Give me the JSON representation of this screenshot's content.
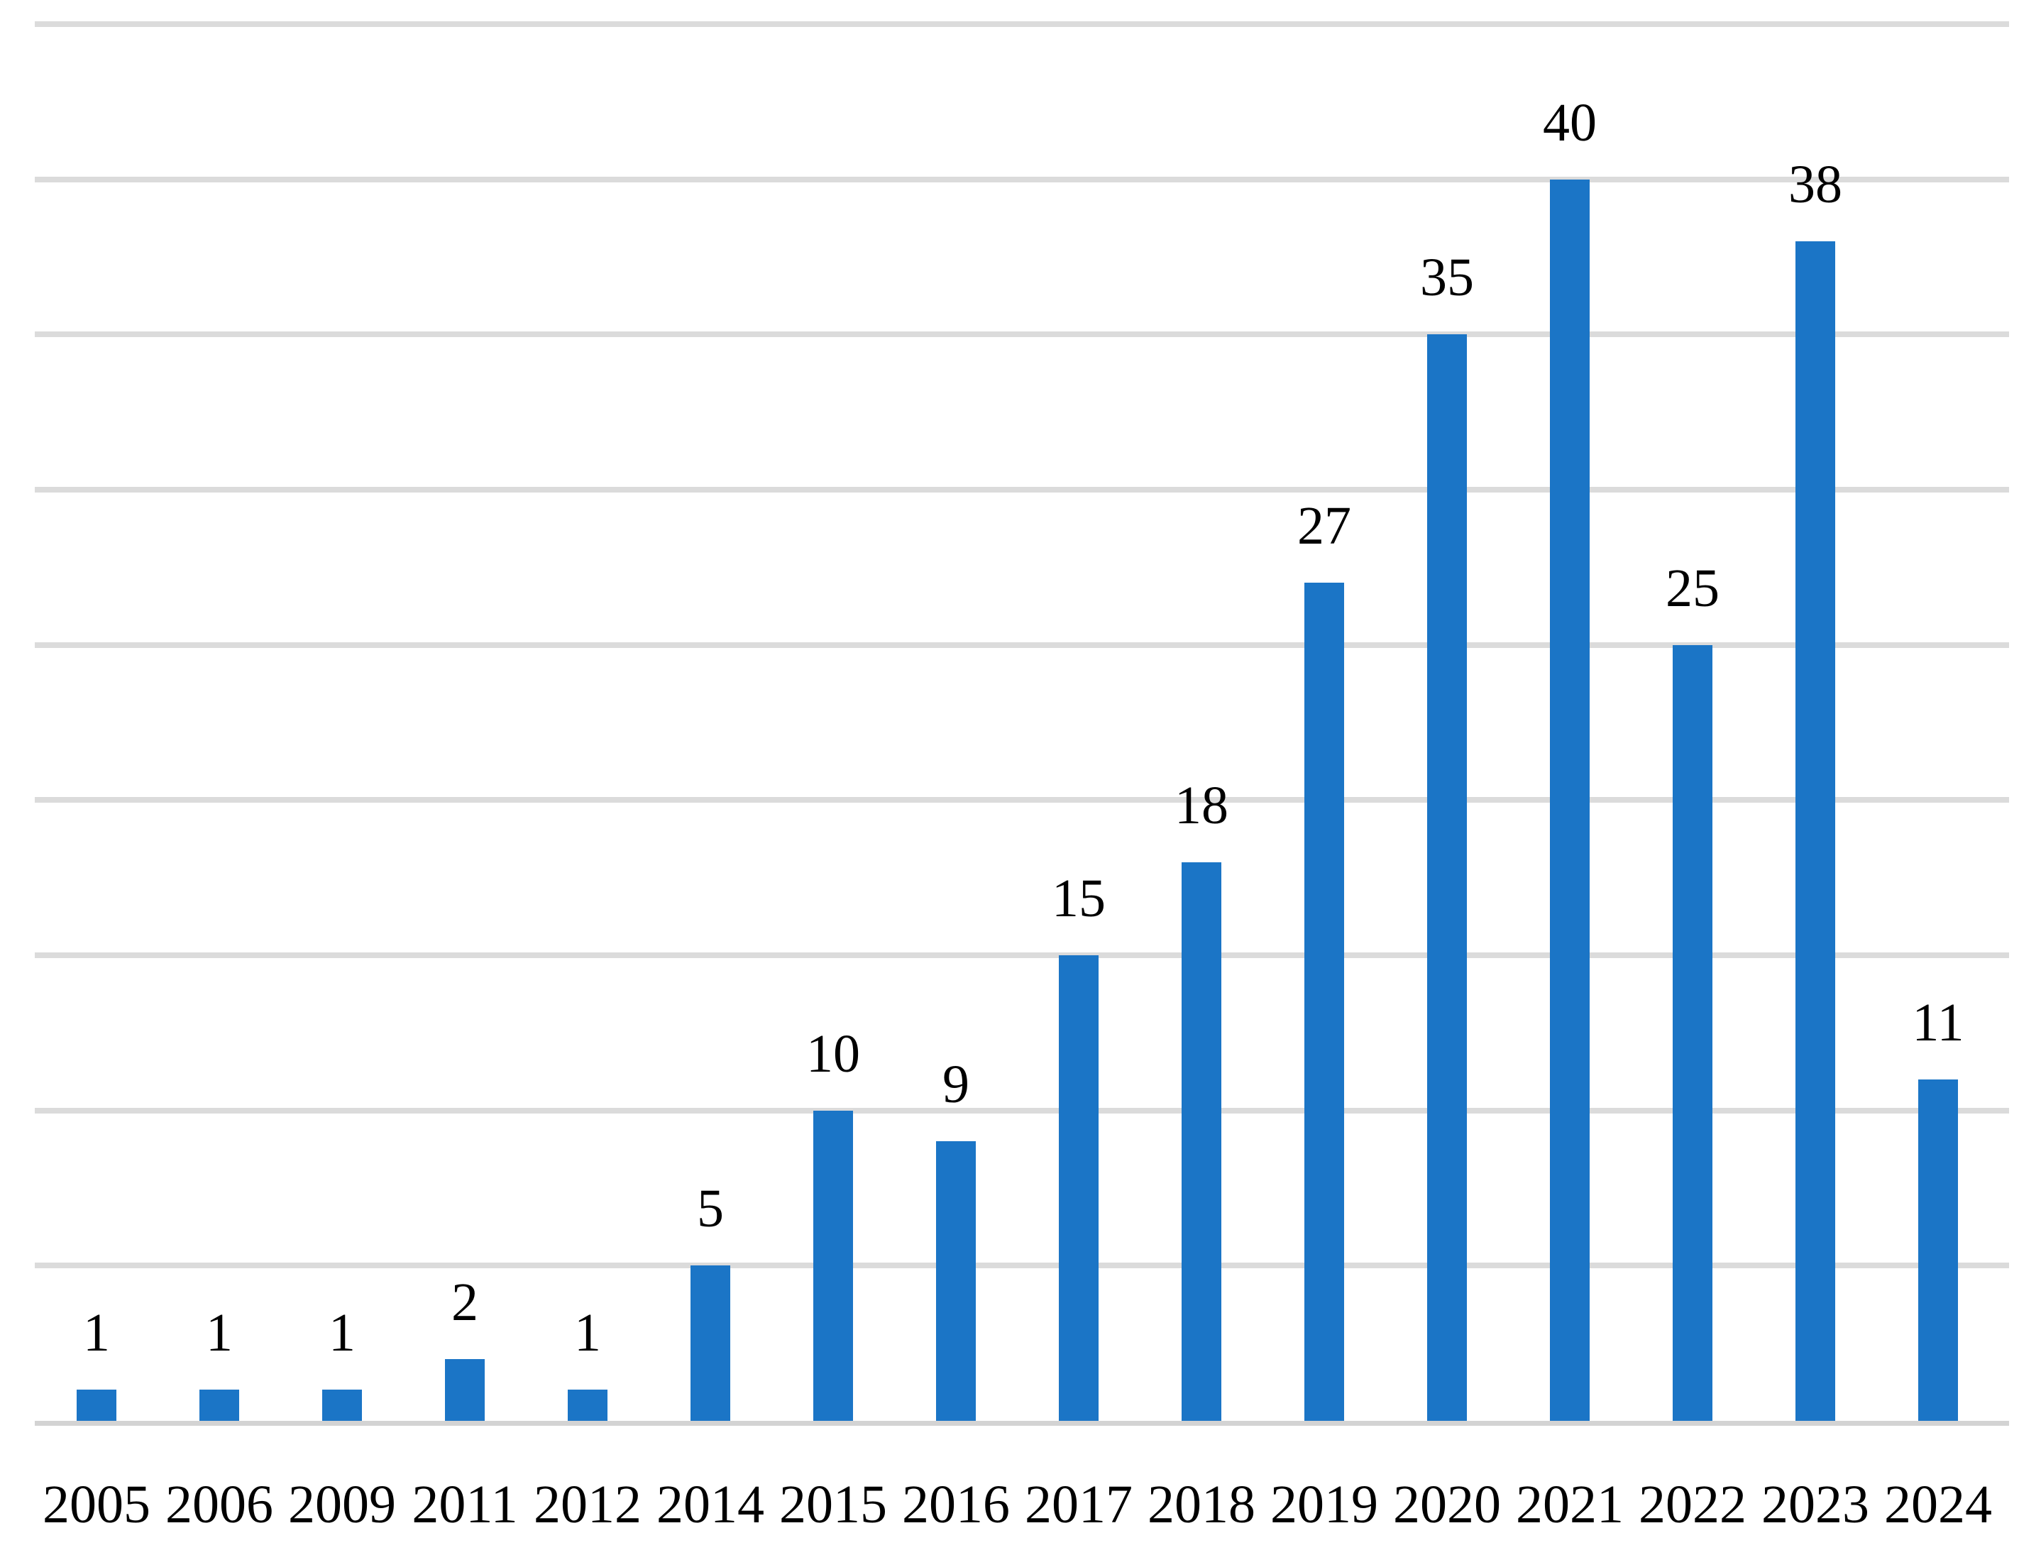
{
  "chart_data": {
    "type": "bar",
    "title": "",
    "xlabel": "",
    "ylabel": "",
    "categories": [
      "2005",
      "2006",
      "2009",
      "2011",
      "2012",
      "2014",
      "2015",
      "2016",
      "2017",
      "2018",
      "2019",
      "2020",
      "2021",
      "2022",
      "2023",
      "2024"
    ],
    "values": [
      1,
      1,
      1,
      2,
      1,
      5,
      10,
      9,
      15,
      18,
      27,
      35,
      40,
      25,
      38,
      11
    ],
    "data_labels_shown": true,
    "ylim": [
      0,
      45
    ],
    "gridline_step": 5,
    "grid": "horizontal",
    "legend": "none",
    "y_tick_labels_shown": false,
    "colors": {
      "bar": "#1B75C6",
      "gridline": "#DBDBDB",
      "axis_line": "#D3D3D3",
      "label_text": "#000000",
      "background": "#FFFFFF"
    }
  }
}
